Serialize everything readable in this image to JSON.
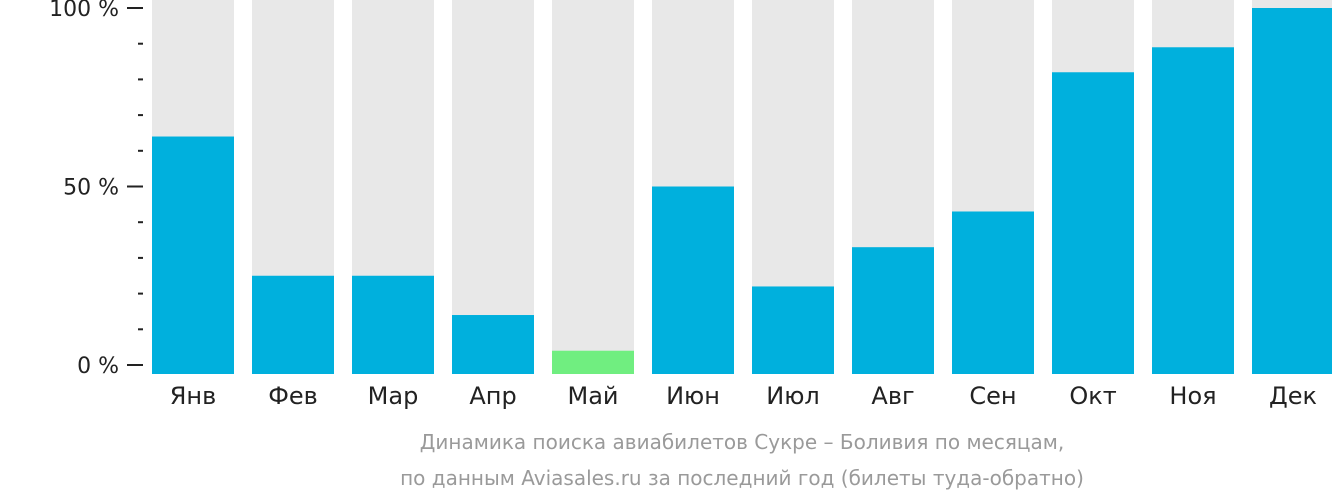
{
  "chart_data": {
    "type": "bar",
    "categories": [
      "Янв",
      "Фев",
      "Мар",
      "Апр",
      "Май",
      "Июн",
      "Июл",
      "Авг",
      "Сен",
      "Окт",
      "Ноя",
      "Дек"
    ],
    "values": [
      64,
      25,
      25,
      14,
      4,
      50,
      22,
      33,
      43,
      82,
      89,
      100
    ],
    "ylim": [
      0,
      100
    ],
    "yticks": [
      {
        "value": 0,
        "label": "0 %"
      },
      {
        "value": 50,
        "label": "50 %"
      },
      {
        "value": 100,
        "label": "100 %"
      }
    ],
    "highlight_index": 4,
    "colors": {
      "bar": "#00B0DD",
      "highlight": "#70EE80",
      "background_bar": "#E8E8E8",
      "axis": "#222222"
    },
    "caption": [
      "Динамика поиска авиабилетов Сукре – Боливия по месяцам,",
      "по данным Aviasales.ru за последний год (билеты туда-обратно)"
    ]
  }
}
